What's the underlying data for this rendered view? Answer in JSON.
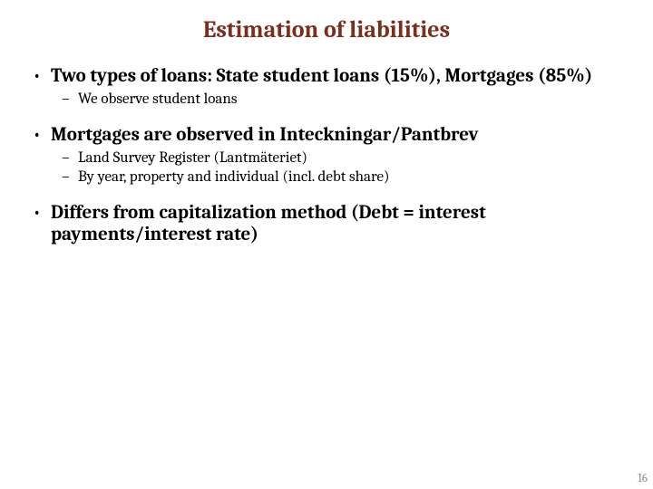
{
  "title": {
    "text": "Estimation of liabilities",
    "color": "#7a2e1d",
    "fontsize": 26
  },
  "body": {
    "color": "#000000",
    "level1_fontsize": 21,
    "level2_fontsize": 17
  },
  "bullets": [
    {
      "text": "Two types of loans: State student loans (15%), Mortgages (85%)",
      "sub": [
        "We observe student loans"
      ]
    },
    {
      "text": "Mortgages are observed in Inteckningar/Pantbrev",
      "sub": [
        "Land Survey Register (Lantmäteriet)",
        "By year, property and individual (incl. debt share)"
      ]
    },
    {
      "text": "Differs from capitalization method (Debt = interest payments/interest rate)",
      "sub": []
    }
  ],
  "page_number": {
    "text": "16",
    "color": "#8b8b8b",
    "fontsize": 13
  }
}
